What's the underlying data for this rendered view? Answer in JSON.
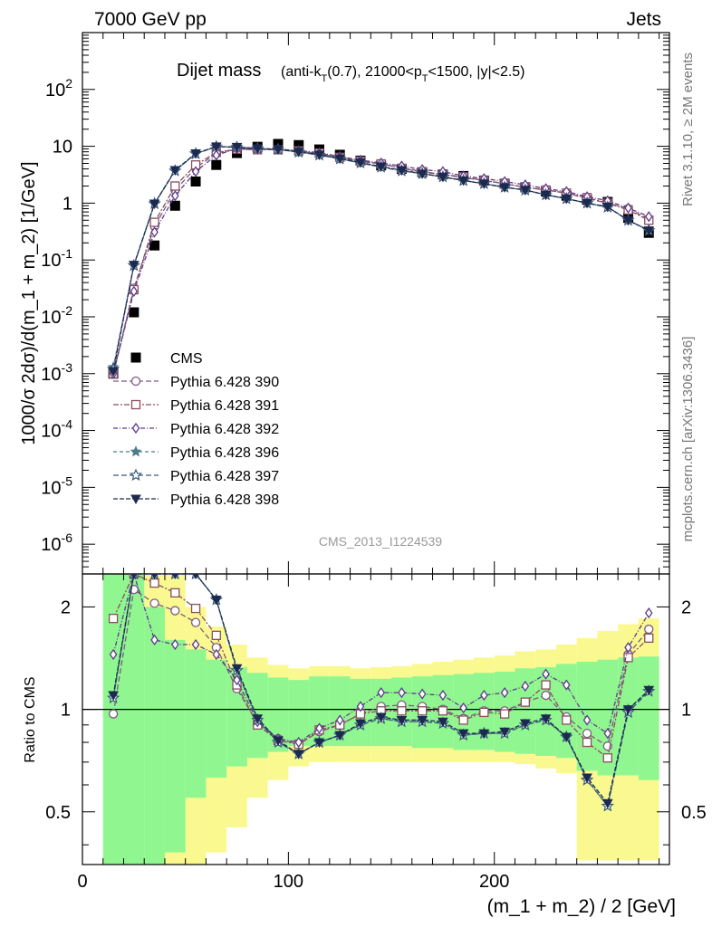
{
  "header": {
    "left": "7000 GeV pp",
    "right": "Jets"
  },
  "side_labels": {
    "rivet": "Rivet 3.1.10, ≥ 2M events",
    "mcplots": "mcplots.cern.ch [arXiv:1306.3436]"
  },
  "watermark": "CMS_2013_I1224539",
  "chart_data": [
    {
      "type": "line",
      "title": "Dijet mass",
      "subtitle_parts": {
        "pre": "(anti-k",
        "sub1": "T",
        "mid1": "(0.7), 21000<p",
        "sub2": "T",
        "post": "<1500, |y|<2.5)"
      },
      "xlabel": "(m_1 + m_2) / 2 [GeV]",
      "ylabel": "1000/σ 2dσ)/d(m_1 + m_2) [1/GeV]",
      "yscale": "log",
      "xlim": [
        0,
        285
      ],
      "ylim": [
        3e-07,
        1000
      ],
      "x_ticks": [
        "0",
        "100",
        "200"
      ],
      "y_ticks": [
        {
          "base": "10",
          "exp": "-6"
        },
        {
          "base": "10",
          "exp": "-5"
        },
        {
          "base": "10",
          "exp": "-4"
        },
        {
          "base": "10",
          "exp": "-3"
        },
        {
          "base": "10",
          "exp": "-2"
        },
        {
          "base": "10",
          "exp": "-1"
        },
        {
          "base": "1",
          "exp": ""
        },
        {
          "base": "10",
          "exp": ""
        },
        {
          "base": "10",
          "exp": "2"
        }
      ],
      "x": [
        15,
        25,
        35,
        45,
        55,
        65,
        75,
        85,
        95,
        105,
        115,
        125,
        135,
        145,
        155,
        165,
        175,
        185,
        195,
        205,
        215,
        225,
        235,
        245,
        255,
        265,
        275
      ],
      "data": {
        "name": "CMS",
        "color": "#000000",
        "values": [
          0.001,
          0.012,
          0.18,
          0.9,
          2.4,
          4.7,
          7.6,
          9.8,
          11,
          10.5,
          8.8,
          7.1,
          5.6,
          4.6,
          4.0,
          3.5,
          3.2,
          3.0,
          2.5,
          2.2,
          1.9,
          1.6,
          1.35,
          1.15,
          1.05,
          0.55,
          0.3
        ]
      },
      "series": [
        {
          "name": "Pythia 6.428 390",
          "color": "#7e5a82",
          "marker": "circle-open",
          "dash": "6 3",
          "values": [
            0.001,
            0.032,
            0.39,
            1.68,
            4.2,
            7.5,
            9.0,
            8.8,
            8.8,
            8.2,
            7.4,
            6.3,
            5.4,
            4.9,
            4.2,
            3.6,
            3.2,
            2.8,
            2.5,
            2.2,
            1.9,
            1.7,
            1.5,
            1.2,
            1.0,
            0.8,
            0.52
          ]
        },
        {
          "name": "Pythia 6.428 391",
          "color": "#8a4e5e",
          "marker": "square-open",
          "dash": "6 2 2 2",
          "values": [
            0.001,
            0.03,
            0.46,
            2.0,
            4.7,
            7.8,
            8.9,
            8.7,
            8.7,
            8.3,
            7.6,
            6.4,
            5.5,
            4.9,
            4.1,
            3.5,
            3.2,
            2.9,
            2.5,
            2.2,
            1.9,
            1.7,
            1.5,
            1.25,
            1.0,
            0.76,
            0.5
          ]
        },
        {
          "name": "Pythia 6.428 392",
          "color": "#5e3a8a",
          "marker": "diamond-open",
          "dash": "5 2 1 2",
          "values": [
            0.001,
            0.028,
            0.31,
            1.35,
            3.6,
            7.0,
            9.1,
            9.0,
            8.9,
            8.4,
            7.7,
            6.6,
            5.7,
            5.1,
            4.5,
            3.9,
            3.6,
            3.0,
            2.7,
            2.4,
            2.1,
            1.8,
            1.6,
            1.3,
            1.1,
            0.82,
            0.58
          ]
        },
        {
          "name": "Pythia 6.428 396",
          "color": "#4a7d8a",
          "marker": "star-filled",
          "dash": "4 3",
          "values": [
            0.0013,
            0.08,
            0.98,
            3.7,
            7.4,
            9.8,
            9.6,
            9.1,
            8.8,
            7.9,
            7.0,
            6.0,
            5.1,
            4.3,
            3.7,
            3.3,
            2.9,
            2.5,
            2.2,
            1.9,
            1.7,
            1.4,
            1.2,
            1.0,
            0.85,
            0.5,
            0.33
          ]
        },
        {
          "name": "Pythia 6.428 397",
          "color": "#3a5a7a",
          "marker": "star-open",
          "dash": "6 3",
          "values": [
            0.0012,
            0.08,
            0.98,
            3.7,
            7.4,
            9.8,
            9.6,
            9.1,
            8.8,
            7.9,
            7.0,
            6.0,
            5.1,
            4.3,
            3.7,
            3.3,
            2.9,
            2.5,
            2.2,
            1.9,
            1.7,
            1.4,
            1.2,
            1.0,
            0.85,
            0.5,
            0.33
          ]
        },
        {
          "name": "Pythia 6.428 398",
          "color": "#1c2a50",
          "marker": "triangle-down-filled",
          "dash": "5 2",
          "values": [
            0.0011,
            0.082,
            0.98,
            3.8,
            7.5,
            9.9,
            9.7,
            9.2,
            8.9,
            8.0,
            7.1,
            6.1,
            5.2,
            4.4,
            3.8,
            3.3,
            2.9,
            2.5,
            2.2,
            1.9,
            1.7,
            1.4,
            1.2,
            1.0,
            0.86,
            0.5,
            0.33
          ]
        }
      ]
    },
    {
      "type": "line",
      "title": "",
      "ylabel": "Ratio to CMS",
      "yscale": "log",
      "xlim": [
        0,
        285
      ],
      "ylim": [
        0.35,
        2.5
      ],
      "y_ticks": [
        "0.5",
        "1",
        "2"
      ],
      "x": [
        15,
        25,
        35,
        45,
        55,
        65,
        75,
        85,
        95,
        105,
        115,
        125,
        135,
        145,
        155,
        165,
        175,
        185,
        195,
        205,
        215,
        225,
        235,
        245,
        255,
        265,
        275
      ],
      "band_edges": [
        10,
        20,
        30,
        40,
        50,
        60,
        70,
        80,
        90,
        100,
        110,
        120,
        130,
        140,
        150,
        160,
        170,
        180,
        190,
        200,
        210,
        220,
        230,
        240,
        250,
        260,
        270,
        280
      ],
      "stat_band": {
        "color": "#90f790",
        "lo": [
          0.35,
          0.35,
          0.35,
          0.38,
          0.55,
          0.63,
          0.68,
          0.72,
          0.75,
          0.78,
          0.78,
          0.78,
          0.78,
          0.78,
          0.78,
          0.77,
          0.77,
          0.76,
          0.76,
          0.75,
          0.74,
          0.73,
          0.72,
          0.66,
          0.64,
          0.64,
          0.62
        ],
        "hi": [
          2.5,
          2.5,
          2.0,
          1.6,
          1.5,
          1.4,
          1.33,
          1.28,
          1.24,
          1.22,
          1.25,
          1.25,
          1.23,
          1.23,
          1.24,
          1.25,
          1.26,
          1.27,
          1.28,
          1.29,
          1.32,
          1.33,
          1.36,
          1.38,
          1.4,
          1.42,
          1.43
        ]
      },
      "syst_band": {
        "color": "#f9f990",
        "lo": [
          0.35,
          0.35,
          0.35,
          0.35,
          0.35,
          0.38,
          0.45,
          0.55,
          0.62,
          0.68,
          0.7,
          0.7,
          0.7,
          0.7,
          0.7,
          0.7,
          0.7,
          0.7,
          0.7,
          0.7,
          0.69,
          0.67,
          0.65,
          0.36,
          0.36,
          0.36,
          0.36
        ],
        "hi": [
          2.5,
          2.5,
          2.5,
          2.5,
          2.0,
          1.75,
          1.55,
          1.42,
          1.35,
          1.32,
          1.34,
          1.34,
          1.32,
          1.33,
          1.34,
          1.36,
          1.38,
          1.4,
          1.42,
          1.44,
          1.48,
          1.5,
          1.55,
          1.62,
          1.7,
          1.78,
          1.85
        ]
      },
      "series": [
        {
          "name": "Pythia 6.428 390",
          "color": "#7e5a82",
          "marker": "circle-open",
          "dash": "6 3",
          "values": [
            0.97,
            2.25,
            2.05,
            1.95,
            1.8,
            1.52,
            1.15,
            0.91,
            0.82,
            0.79,
            0.86,
            0.9,
            0.97,
            1.02,
            1.03,
            1.02,
            1.0,
            0.94,
            0.99,
            0.99,
            1.05,
            1.1,
            0.95,
            0.85,
            0.78,
            1.45,
            1.72
          ]
        },
        {
          "name": "Pythia 6.428 391",
          "color": "#8a4e5e",
          "marker": "square-open",
          "dash": "6 2 2 2",
          "values": [
            1.85,
            2.5,
            2.35,
            2.2,
            1.98,
            1.65,
            1.18,
            0.9,
            0.81,
            0.79,
            0.87,
            0.9,
            0.97,
            0.99,
            0.99,
            0.99,
            0.99,
            0.93,
            0.98,
            0.97,
            1.05,
            1.18,
            0.93,
            0.8,
            0.72,
            1.42,
            1.62
          ]
        },
        {
          "name": "Pythia 6.428 392",
          "color": "#5e3a8a",
          "marker": "diamond-open",
          "dash": "5 2 1 2",
          "values": [
            1.45,
            2.5,
            1.6,
            1.55,
            1.55,
            1.45,
            1.22,
            0.92,
            0.82,
            0.8,
            0.88,
            0.93,
            1.02,
            1.12,
            1.12,
            1.11,
            1.1,
            1.01,
            1.1,
            1.12,
            1.17,
            1.27,
            1.18,
            0.93,
            0.85,
            1.52,
            1.92
          ]
        },
        {
          "name": "Pythia 6.428 396",
          "color": "#4a7d8a",
          "marker": "star-filled",
          "dash": "4 3",
          "values": [
            1.08,
            2.5,
            2.5,
            2.5,
            2.5,
            2.1,
            1.3,
            0.93,
            0.8,
            0.74,
            0.8,
            0.84,
            0.9,
            0.94,
            0.92,
            0.92,
            0.91,
            0.84,
            0.85,
            0.85,
            0.9,
            0.93,
            0.83,
            0.62,
            0.52,
            1.0,
            1.13
          ]
        },
        {
          "name": "Pythia 6.428 397",
          "color": "#3a5a7a",
          "marker": "star-open",
          "dash": "6 3",
          "values": [
            1.08,
            2.5,
            2.5,
            2.5,
            2.5,
            2.1,
            1.3,
            0.93,
            0.8,
            0.74,
            0.8,
            0.84,
            0.9,
            0.94,
            0.92,
            0.92,
            0.91,
            0.84,
            0.85,
            0.85,
            0.9,
            0.93,
            0.83,
            0.62,
            0.52,
            0.98,
            1.13
          ]
        },
        {
          "name": "Pythia 6.428 398",
          "color": "#1c2a50",
          "marker": "triangle-down-filled",
          "dash": "5 2",
          "values": [
            1.1,
            2.5,
            2.5,
            2.5,
            2.5,
            2.1,
            1.32,
            0.94,
            0.81,
            0.74,
            0.8,
            0.84,
            0.91,
            0.95,
            0.93,
            0.93,
            0.92,
            0.85,
            0.85,
            0.86,
            0.91,
            0.94,
            0.83,
            0.63,
            0.53,
            1.0,
            1.14
          ]
        }
      ]
    }
  ]
}
